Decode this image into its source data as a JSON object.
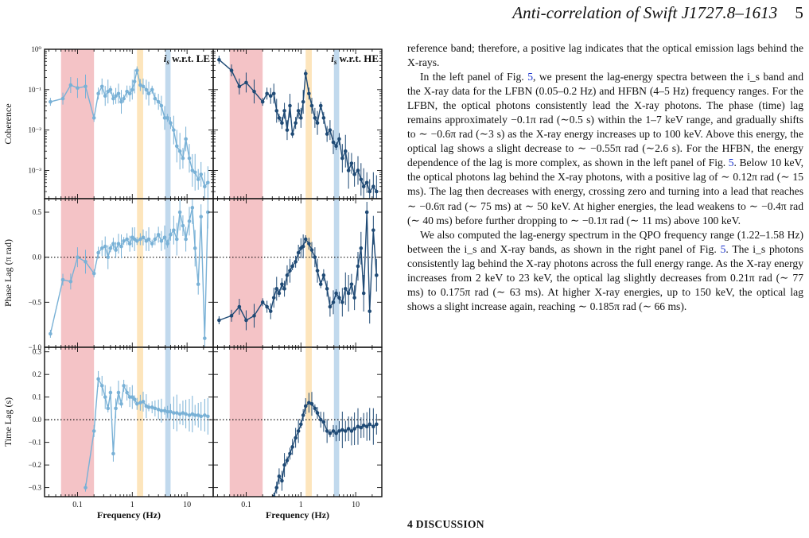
{
  "running_head": {
    "title": "Anti-correlation of Swift J1727.8–1613",
    "page_number": "5"
  },
  "figure": {
    "colors": {
      "le_series": "#79b1d6",
      "he_series": "#1f4a75",
      "band_lfbn": "#f2b8bc",
      "band_qpo": "#fde0b0",
      "band_hfbn": "#b6d2ea",
      "zero_line": "#111111"
    },
    "panel_labels": {
      "left": "i_s w.r.t. LE",
      "right": "i_s w.r.t. HE"
    },
    "row_ylabels": [
      "Coherence",
      "Phase Lag (π rad)",
      "Time Lag (s)"
    ],
    "xlabel": "Frequency (Hz)"
  },
  "chart_data": [
    {
      "type": "scatter",
      "panel": "coherence",
      "xscale": "log",
      "yscale": "log",
      "xlim": [
        0.025,
        30
      ],
      "ylim": [
        0.0002,
        1
      ],
      "yticks": [
        0.001,
        0.01,
        0.1,
        1
      ],
      "ytick_labels": [
        "10⁻³",
        "10⁻²",
        "10⁻¹",
        "10⁰"
      ],
      "xticks": [
        0.1,
        1,
        10
      ],
      "xtick_labels": [
        "0.1",
        "1",
        "10"
      ],
      "shaded_bands": [
        [
          0.05,
          0.2
        ],
        [
          1.22,
          1.58
        ],
        [
          4,
          5
        ]
      ],
      "series": [
        {
          "name": "i_s w.r.t. LE",
          "x": [
            0.032,
            0.054,
            0.075,
            0.1,
            0.14,
            0.2,
            0.24,
            0.28,
            0.32,
            0.36,
            0.4,
            0.45,
            0.5,
            0.56,
            0.63,
            0.7,
            0.8,
            0.9,
            1.0,
            1.1,
            1.22,
            1.4,
            1.58,
            1.8,
            2.0,
            2.3,
            2.6,
            3.0,
            3.4,
            3.9,
            4.4,
            5.0,
            5.7,
            6.5,
            7.4,
            8.4,
            9.5,
            11,
            12.5,
            14,
            16,
            18,
            21,
            24
          ],
          "y": [
            0.05,
            0.06,
            0.13,
            0.11,
            0.12,
            0.02,
            0.08,
            0.12,
            0.07,
            0.09,
            0.1,
            0.06,
            0.07,
            0.08,
            0.05,
            0.06,
            0.09,
            0.08,
            0.1,
            0.16,
            0.3,
            0.13,
            0.12,
            0.1,
            0.08,
            0.1,
            0.06,
            0.05,
            0.04,
            0.02,
            0.02,
            0.015,
            0.01,
            0.004,
            0.003,
            0.002,
            0.006,
            0.002,
            0.001,
            0.0009,
            0.0006,
            0.0008,
            0.0004,
            0.0005
          ]
        },
        {
          "name": "i_s w.r.t. HE",
          "x": [
            0.032,
            0.054,
            0.075,
            0.1,
            0.14,
            0.2,
            0.24,
            0.28,
            0.32,
            0.36,
            0.4,
            0.45,
            0.5,
            0.56,
            0.63,
            0.7,
            0.8,
            0.9,
            1.0,
            1.1,
            1.22,
            1.4,
            1.58,
            1.8,
            2.0,
            2.3,
            2.6,
            3.0,
            3.4,
            3.9,
            4.4,
            5.0,
            5.7,
            6.5,
            7.4,
            8.4,
            9.5,
            11,
            12.5,
            14,
            16,
            18,
            21,
            24
          ],
          "y": [
            0.55,
            0.3,
            0.12,
            0.15,
            0.09,
            0.05,
            0.08,
            0.07,
            0.08,
            0.03,
            0.02,
            0.015,
            0.03,
            0.01,
            0.04,
            0.008,
            0.015,
            0.03,
            0.02,
            0.05,
            0.25,
            0.08,
            0.04,
            0.02,
            0.015,
            0.04,
            0.02,
            0.008,
            0.01,
            0.005,
            0.004,
            0.006,
            0.002,
            0.003,
            0.001,
            0.0015,
            0.0008,
            0.001,
            0.0006,
            0.0004,
            0.0005,
            0.0003,
            0.0004,
            0.0003
          ]
        }
      ]
    },
    {
      "type": "scatter",
      "panel": "phase_lag",
      "xscale": "log",
      "xlim": [
        0.025,
        30
      ],
      "ylim": [
        -1.0,
        0.65
      ],
      "yticks": [
        -1.0,
        -0.5,
        0.0,
        0.5
      ],
      "ytick_labels": [
        "−1.0",
        "−0.5",
        "0.0",
        "0.5"
      ],
      "xticks": [
        0.1,
        1,
        10
      ],
      "shaded_bands": [
        [
          0.05,
          0.2
        ],
        [
          1.22,
          1.58
        ],
        [
          4,
          5
        ]
      ],
      "series": [
        {
          "name": "i_s w.r.t. LE",
          "x": [
            0.032,
            0.054,
            0.075,
            0.1,
            0.14,
            0.2,
            0.24,
            0.28,
            0.32,
            0.36,
            0.4,
            0.45,
            0.5,
            0.56,
            0.63,
            0.7,
            0.8,
            0.9,
            1.0,
            1.1,
            1.22,
            1.4,
            1.58,
            1.8,
            2.0,
            2.3,
            2.6,
            3.0,
            3.4,
            3.9,
            4.4,
            5.0,
            5.7,
            6.5,
            7.4,
            8.4,
            9.5,
            11,
            12.5,
            14,
            16,
            18,
            21,
            24
          ],
          "y": [
            -0.85,
            -0.25,
            -0.27,
            0.0,
            -0.05,
            -0.18,
            0.05,
            0.1,
            0.12,
            0.0,
            0.1,
            0.15,
            0.08,
            0.15,
            0.12,
            0.18,
            0.2,
            0.15,
            0.22,
            0.2,
            0.18,
            0.2,
            0.22,
            0.18,
            0.2,
            0.15,
            0.2,
            0.25,
            0.18,
            0.22,
            0.15,
            0.25,
            0.3,
            0.2,
            0.5,
            0.35,
            0.2,
            0.4,
            0.55,
            0.1,
            -0.3,
            0.45,
            -0.9,
            0.5
          ]
        },
        {
          "name": "i_s w.r.t. HE",
          "x": [
            0.032,
            0.054,
            0.075,
            0.1,
            0.14,
            0.2,
            0.24,
            0.28,
            0.32,
            0.36,
            0.4,
            0.45,
            0.5,
            0.56,
            0.63,
            0.7,
            0.8,
            0.9,
            1.0,
            1.1,
            1.22,
            1.4,
            1.58,
            1.8,
            2.0,
            2.3,
            2.6,
            3.0,
            3.4,
            3.9,
            4.4,
            5.0,
            5.7,
            6.5,
            7.4,
            8.4,
            9.5,
            11,
            12.5,
            14,
            16,
            18,
            21,
            24
          ],
          "y": [
            -0.7,
            -0.65,
            -0.55,
            -0.7,
            -0.65,
            -0.5,
            -0.55,
            -0.6,
            -0.45,
            -0.35,
            -0.4,
            -0.3,
            -0.35,
            -0.2,
            -0.15,
            -0.1,
            -0.05,
            0.05,
            0.1,
            0.12,
            0.2,
            0.15,
            0.08,
            0.0,
            -0.15,
            -0.3,
            -0.2,
            -0.35,
            -0.55,
            -0.5,
            -0.4,
            -0.45,
            -0.5,
            -0.35,
            -0.4,
            -0.3,
            -0.45,
            -0.1,
            0.1,
            -0.4,
            0.5,
            -0.6,
            0.3,
            -0.2
          ]
        }
      ]
    },
    {
      "type": "scatter",
      "panel": "time_lag",
      "xscale": "log",
      "xlim": [
        0.025,
        30
      ],
      "ylim": [
        -0.34,
        0.32
      ],
      "yticks": [
        -0.3,
        -0.2,
        -0.1,
        0.0,
        0.1,
        0.2,
        0.3
      ],
      "ytick_labels": [
        "−0.3",
        "−0.2",
        "−0.1",
        "0.0",
        "0.1",
        "0.2",
        "0.3"
      ],
      "xticks": [
        0.1,
        1,
        10
      ],
      "xtick_labels": [
        "0.1",
        "1",
        "10"
      ],
      "shaded_bands": [
        [
          0.05,
          0.2
        ],
        [
          1.22,
          1.58
        ],
        [
          4,
          5
        ]
      ],
      "series": [
        {
          "name": "i_s w.r.t. LE",
          "x": [
            0.14,
            0.2,
            0.24,
            0.28,
            0.32,
            0.36,
            0.4,
            0.45,
            0.5,
            0.56,
            0.63,
            0.7,
            0.8,
            0.9,
            1.0,
            1.1,
            1.22,
            1.4,
            1.58,
            1.8,
            2.0,
            2.3,
            2.6,
            3.0,
            3.4,
            3.9,
            4.4,
            5.0,
            5.7,
            6.5,
            7.4,
            8.4,
            9.5,
            11,
            12.5,
            14,
            16,
            18,
            21,
            24
          ],
          "y": [
            -0.3,
            -0.05,
            0.18,
            0.15,
            0.1,
            0.05,
            0.12,
            -0.15,
            0.05,
            0.12,
            0.07,
            0.15,
            0.12,
            0.1,
            0.1,
            0.09,
            0.07,
            0.075,
            0.08,
            0.06,
            0.055,
            0.055,
            0.05,
            0.045,
            0.04,
            0.04,
            0.035,
            0.035,
            0.03,
            0.03,
            0.025,
            0.03,
            0.025,
            0.02,
            0.025,
            0.02,
            0.02,
            0.015,
            0.02,
            0.015
          ]
        },
        {
          "name": "i_s w.r.t. HE",
          "x": [
            0.32,
            0.36,
            0.4,
            0.45,
            0.5,
            0.56,
            0.63,
            0.7,
            0.8,
            0.9,
            1.0,
            1.1,
            1.22,
            1.4,
            1.58,
            1.8,
            2.0,
            2.3,
            2.6,
            3.0,
            3.4,
            3.9,
            4.4,
            5.0,
            5.7,
            6.5,
            7.4,
            8.4,
            9.5,
            11,
            12.5,
            14,
            16,
            18,
            21,
            24
          ],
          "y": [
            -0.34,
            -0.3,
            -0.25,
            -0.27,
            -0.2,
            -0.18,
            -0.15,
            -0.12,
            -0.08,
            -0.05,
            -0.02,
            0.02,
            0.06,
            0.075,
            0.07,
            0.05,
            0.03,
            0.0,
            -0.01,
            -0.05,
            -0.06,
            -0.05,
            -0.06,
            -0.05,
            -0.045,
            -0.05,
            -0.04,
            -0.05,
            -0.04,
            -0.03,
            -0.035,
            -0.025,
            -0.03,
            -0.02,
            -0.03,
            -0.02
          ]
        }
      ]
    }
  ],
  "body_text": {
    "p1": "reference band; therefore, a positive lag indicates that the optical emission lags behind the X-rays.",
    "p2a": "In the left panel of Fig. ",
    "p2_link": "5",
    "p2b": ", we present the lag-energy spectra between the i_s band and the X-ray data for the LFBN (0.05–0.2 Hz) and HFBN (4–5 Hz) frequency ranges. For the LFBN, the optical photons consistently lead the X-ray photons. The phase (time) lag remains approximately −0.1π rad (∼0.5 s) within the 1–7 keV range, and gradually shifts to ∼ −0.6π rad (∼3 s) as the X-ray energy increases up to 100 keV. Above this energy, the optical lag shows a slight decrease to ∼ −0.55π rad (∼2.6 s). For the HFBN, the energy dependence of the lag is more complex, as shown in the left panel of Fig. ",
    "p2_link2": "5",
    "p2c": ". Below 10 keV, the optical photons lag behind the X-ray photons, with a positive lag of ∼ 0.12π rad (∼ 15 ms). The lag then decreases with energy, crossing zero and turning into a lead that reaches ∼ −0.6π rad (∼ 75 ms) at ∼ 50 keV. At higher energies, the lead weakens to ∼ −0.4π rad (∼ 40 ms) before further dropping to ∼ −0.1π rad (∼ 11 ms) above 100 keV.",
    "p3a": "We also computed the lag-energy spectrum in the QPO frequency range (1.22–1.58 Hz) between the i_s and X-ray bands, as shown in the right panel of Fig. ",
    "p3_link": "5",
    "p3b": ". The i_s photons consistently lag behind the X-ray photons across the full energy range. As the X-ray energy increases from 2 keV to 23 keV, the optical lag slightly decreases from 0.21π rad (∼ 77 ms) to 0.175π rad (∼ 63 ms). At higher X-ray energies, up to 150 keV, the optical lag shows a slight increase again, reaching ∼ 0.185π rad (∼ 66 ms)."
  },
  "section_heading": "4 DISCUSSION"
}
